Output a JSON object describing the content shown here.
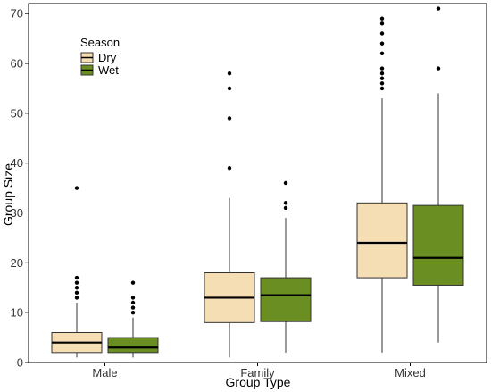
{
  "chart_data": {
    "type": "boxplot",
    "xlabel": "Group Type",
    "ylabel": "Group Size",
    "categories": [
      "Male",
      "Family",
      "Mixed"
    ],
    "ylim": [
      0,
      72
    ],
    "yticks": [
      0,
      10,
      20,
      30,
      40,
      50,
      60,
      70
    ],
    "grid": false,
    "legend": {
      "title": "Season",
      "placement": "top-left"
    },
    "series": [
      {
        "name": "Dry",
        "color": "#F5DEB3",
        "boxes": [
          {
            "category": "Male",
            "min": 1,
            "q1": 2,
            "median": 4,
            "q3": 6,
            "max": 12,
            "outliers": [
              13,
              14,
              15,
              16,
              17,
              35
            ]
          },
          {
            "category": "Family",
            "min": 1,
            "q1": 8,
            "median": 13,
            "q3": 18,
            "max": 33,
            "outliers": [
              39,
              49,
              55,
              58
            ]
          },
          {
            "category": "Mixed",
            "min": 2,
            "q1": 17,
            "median": 24,
            "q3": 32,
            "max": 53,
            "outliers": [
              55,
              56,
              57,
              58,
              59,
              62,
              64,
              66,
              68,
              69
            ]
          }
        ]
      },
      {
        "name": "Wet",
        "color": "#6B8E23",
        "boxes": [
          {
            "category": "Male",
            "min": 1,
            "q1": 2,
            "median": 3,
            "q3": 5,
            "max": 9,
            "outliers": [
              10,
              11,
              12,
              13,
              16
            ]
          },
          {
            "category": "Family",
            "min": 2,
            "q1": 8.2,
            "median": 13.5,
            "q3": 17,
            "max": 29,
            "outliers": [
              31,
              32,
              36
            ]
          },
          {
            "category": "Mixed",
            "min": 4,
            "q1": 15.5,
            "median": 21,
            "q3": 31.5,
            "max": 54,
            "outliers": [
              59,
              71
            ]
          }
        ]
      }
    ]
  }
}
